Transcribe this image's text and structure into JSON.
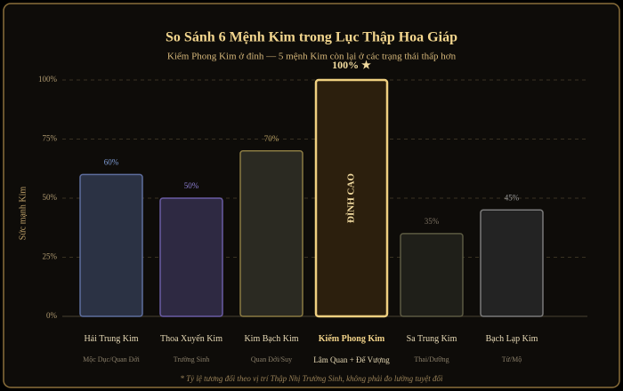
{
  "chart_data": {
    "type": "bar",
    "title": "So Sánh 6 Mệnh Kim trong Lục Thập Hoa Giáp",
    "subtitle": "Kiếm Phong Kim ở đỉnh — 5 mệnh Kim còn lại ở các trạng thái thấp hơn",
    "y_label": "Sức mạnh Kim",
    "categories": [
      "Hải Trung Kim",
      "Thoa Xuyến Kim",
      "Kim Bạch Kim",
      "Kiếm Phong Kim",
      "Sa Trung Kim",
      "Bạch Lạp Kim"
    ],
    "sublabels": [
      "Mộc Dục/Quan Đới",
      "Trường Sinh",
      "Quan Đới/Suy",
      "Lâm Quan + Đế Vượng",
      "Thai/Dưỡng",
      "Tử/Mộ"
    ],
    "values": [
      60,
      50,
      70,
      100,
      35,
      45
    ],
    "value_labels": [
      "60%",
      "50%",
      "70%",
      "100% ★",
      "35%",
      "45%"
    ],
    "colors": [
      "#2b3244",
      "#2e2942",
      "#2b2a22",
      "#2c1f0d",
      "#1f1f19",
      "#232323"
    ],
    "border_colors": [
      "#5e6e9e",
      "#6a5ca4",
      "#8a7a42",
      "#f0d080",
      "#5c5a42",
      "#7a7a7a"
    ],
    "label_colors": [
      "#7f9dd6",
      "#8d7fd4",
      "#b49c62",
      "#f3dca0",
      "#7d7262",
      "#9a9a9a"
    ],
    "annotation": "ĐỈNH CAO",
    "ylim": [
      0,
      100
    ],
    "yticks": [
      {
        "value": 0,
        "label": "0%"
      },
      {
        "value": 25,
        "label": "25%"
      },
      {
        "value": 50,
        "label": "50%"
      },
      {
        "value": 75,
        "label": "75%"
      },
      {
        "value": 100,
        "label": "100%"
      }
    ],
    "grid": true,
    "footnote": "* Tỷ lệ tương đối theo vị trí Thập Nhị Trường Sinh, không phải đo lường tuyệt đối"
  }
}
